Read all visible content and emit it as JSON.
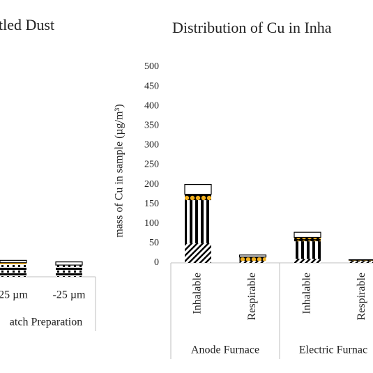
{
  "chart_data": [
    {
      "type": "stacked-bar",
      "title": "tled Dust",
      "categories": [
        "25 µm",
        "-25 µm"
      ],
      "groups": [
        "atch Preparation"
      ],
      "ylim": [
        0,
        500
      ],
      "series": [
        {
          "color": "#000000",
          "pattern": "horizontal",
          "values": [
            32,
            30
          ]
        },
        {
          "color": "#f2b01e",
          "pattern": "solid",
          "values": [
            4,
            0
          ]
        },
        {
          "color": "#000000",
          "pattern": "outline",
          "values": [
            6,
            8
          ]
        }
      ]
    },
    {
      "type": "stacked-bar",
      "title": "Distribution of Cu in Inha",
      "y_label": "mass of Cu in sample (µg/m³)",
      "categories": [
        "Inhalable",
        "Respirable",
        "Inhalable",
        "Respirable"
      ],
      "groups": [
        "Anode Furnace",
        "Electric Furnac"
      ],
      "ylim": [
        0,
        500
      ],
      "yticks": [
        0,
        50,
        100,
        150,
        200,
        250,
        300,
        350,
        400,
        450,
        500
      ],
      "series": [
        {
          "color": "#000000",
          "pattern": "diagonal",
          "values": [
            50,
            5,
            10,
            3
          ]
        },
        {
          "color": "#000000",
          "pattern": "vertical",
          "values": [
            110,
            0,
            45,
            2
          ]
        },
        {
          "color": "#f2b01e",
          "pattern": "dots",
          "values": [
            15,
            10,
            10,
            2
          ]
        },
        {
          "color": "#000000",
          "pattern": "outline",
          "values": [
            25,
            5,
            13,
            1
          ]
        }
      ]
    }
  ]
}
